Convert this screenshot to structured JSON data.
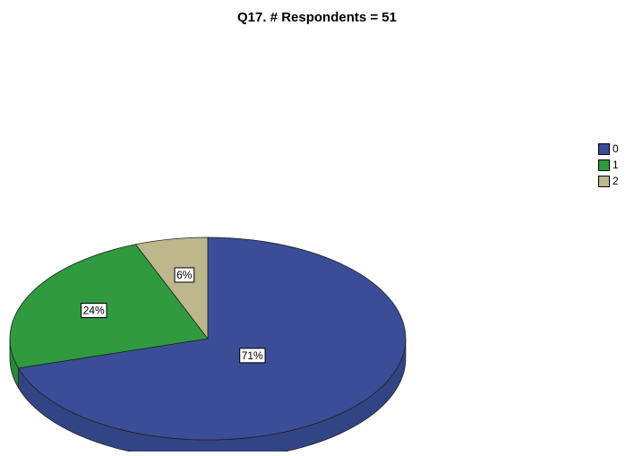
{
  "chart_data": {
    "type": "pie",
    "title": "Q17. # Respondents = 51",
    "categories": [
      "0",
      "1",
      "2"
    ],
    "values": [
      71,
      24,
      6
    ],
    "value_labels": [
      "71%",
      "24%",
      "6%"
    ],
    "colors": [
      "#3a4d96",
      "#2f9a3f",
      "#bdb78e"
    ],
    "legend": "right"
  }
}
